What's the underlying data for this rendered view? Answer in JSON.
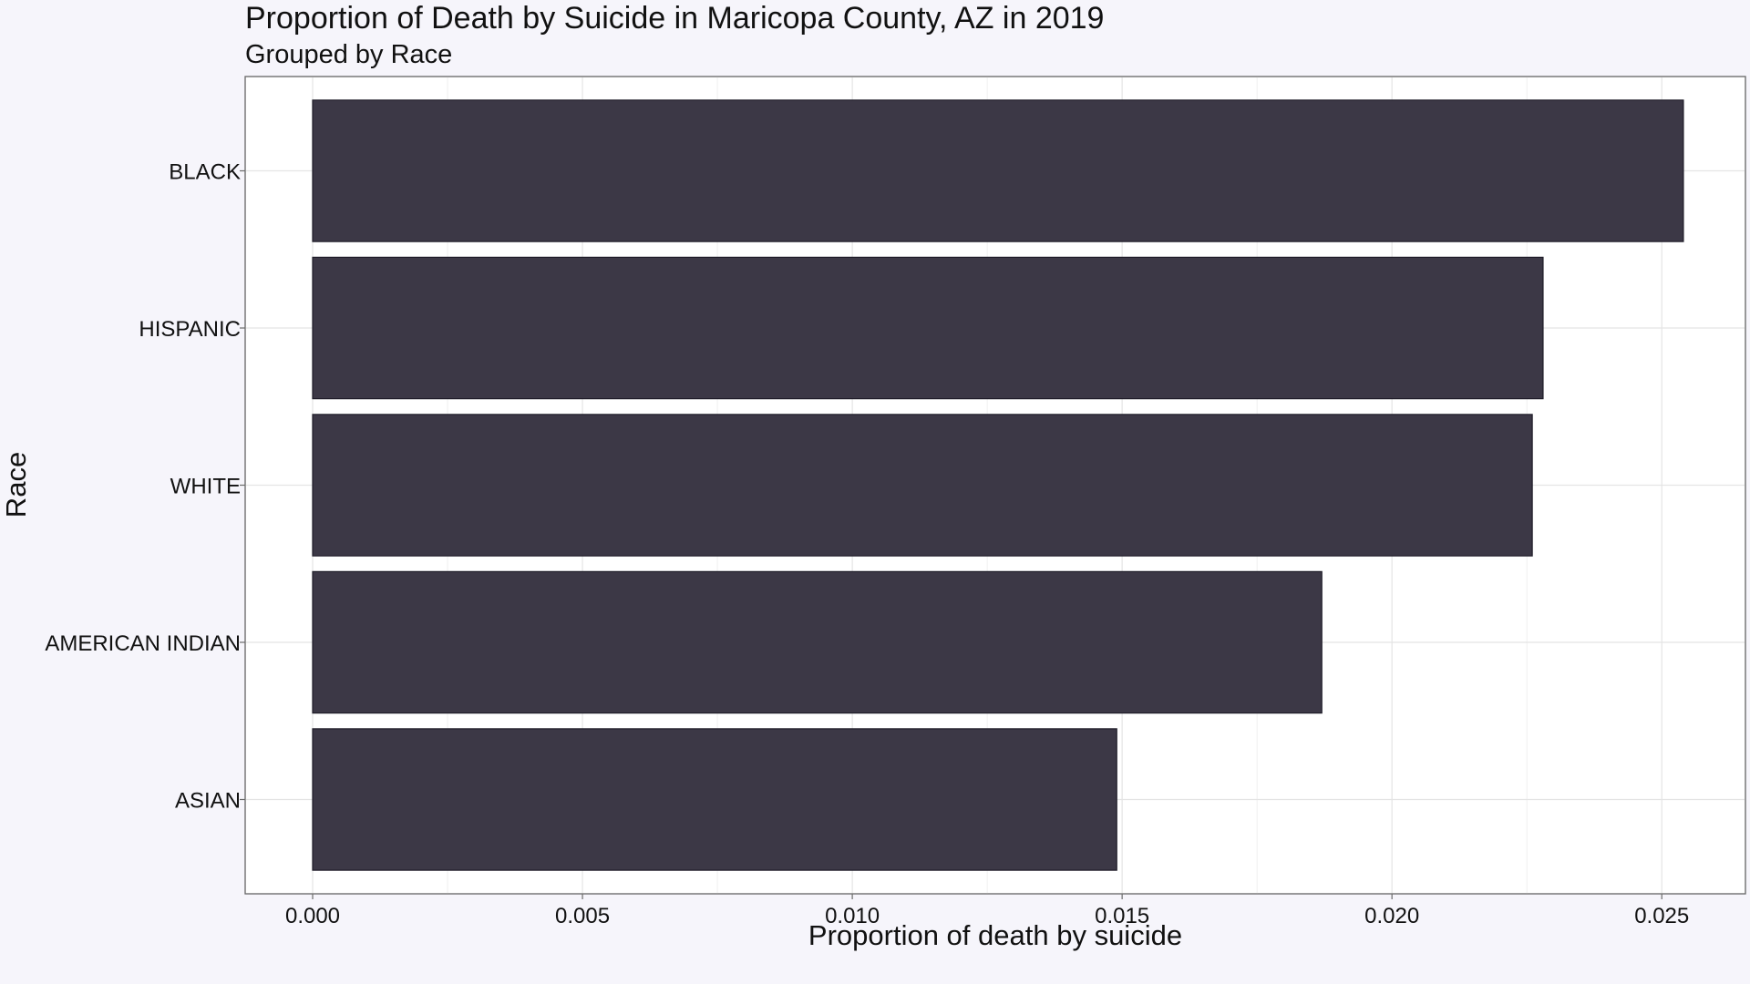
{
  "chart_data": {
    "type": "bar",
    "orientation": "horizontal",
    "title": "Proportion of Death by Suicide in Maricopa County, AZ in 2019",
    "subtitle": "Grouped by Race",
    "xlabel": "Proportion of death by suicide",
    "ylabel": "Race",
    "categories": [
      "BLACK",
      "HISPANIC",
      "WHITE",
      "AMERICAN INDIAN",
      "ASIAN"
    ],
    "values": [
      0.0254,
      0.0228,
      0.0226,
      0.0187,
      0.0149
    ],
    "xlim": [
      -0.00125,
      0.02655
    ],
    "x_ticks": [
      0,
      0.005,
      0.01,
      0.015,
      0.02,
      0.025
    ],
    "x_tick_labels": [
      "0.000",
      "0.005",
      "0.010",
      "0.015",
      "0.020",
      "0.025"
    ],
    "grid": true,
    "legend": "none",
    "colors": {
      "background": "#f6f5fb",
      "panel": "#ffffff",
      "bar": "#3c3846",
      "bar_border": "#1e1c28",
      "grid": "#e4e4e4"
    }
  }
}
